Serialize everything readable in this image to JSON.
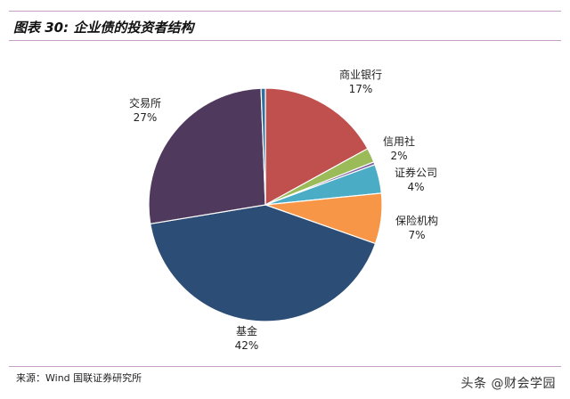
{
  "figure": {
    "title": "图表 30: 企业债的投资者结构",
    "source": "来源：Wind 国联证券研究所",
    "watermark": "头条 @财会学园"
  },
  "chart_data": {
    "type": "pie",
    "title": "",
    "slices": [
      {
        "label": "商业银行",
        "pct_label": "17%",
        "value": 17,
        "color": "#c0504d"
      },
      {
        "label": "信用社",
        "pct_label": "2%",
        "value": 2,
        "color": "#9bbb59"
      },
      {
        "label": "",
        "pct_label": "",
        "value": 0.4,
        "color": "#8064a2"
      },
      {
        "label": "证券公司",
        "pct_label": "4%",
        "value": 4,
        "color": "#4bacc6"
      },
      {
        "label": "保险机构",
        "pct_label": "7%",
        "value": 7,
        "color": "#f79646"
      },
      {
        "label": "基金",
        "pct_label": "42%",
        "value": 42,
        "color": "#2c4d75"
      },
      {
        "label": "交易所",
        "pct_label": "27%",
        "value": 27,
        "color": "#4f3a5e"
      },
      {
        "label": "",
        "pct_label": "",
        "value": 0.6,
        "color": "#2e6f9e"
      }
    ]
  }
}
